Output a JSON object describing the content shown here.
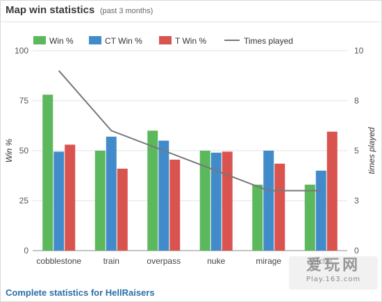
{
  "header": {
    "title": "Map win statistics",
    "subtitle": "(past 3 months)"
  },
  "footer": {
    "link_label": "Complete statistics for HellRaisers"
  },
  "watermark": {
    "big": "爱玩网",
    "small": "Play.163.com"
  },
  "chart_data": {
    "type": "bar",
    "categories": [
      "cobblestone",
      "train",
      "overpass",
      "nuke",
      "mirage",
      "cache"
    ],
    "series": [
      {
        "name": "Win %",
        "color": "#5cb85c",
        "axis": "left",
        "values": [
          78,
          50,
          60,
          50,
          33,
          33
        ]
      },
      {
        "name": "CT Win %",
        "color": "#428bca",
        "axis": "left",
        "values": [
          49.5,
          57,
          55,
          49,
          50,
          40
        ]
      },
      {
        "name": "T Win %",
        "color": "#d9534f",
        "axis": "left",
        "values": [
          53,
          41,
          45.5,
          49.5,
          43.5,
          59.5
        ]
      }
    ],
    "line_series": {
      "name": "Times played",
      "type": "line",
      "color": "#777777",
      "axis": "right",
      "values": [
        9,
        6,
        5,
        4,
        3,
        3
      ]
    },
    "ylabel": "Win %",
    "y2label": "times played",
    "ylim": [
      0,
      100
    ],
    "y2lim": [
      0,
      10
    ],
    "yticks": [
      "0",
      "25",
      "50",
      "75",
      "100"
    ],
    "y2ticks": [
      "0",
      "3",
      "5",
      "8",
      "10"
    ],
    "grid": true,
    "legend": "top"
  }
}
